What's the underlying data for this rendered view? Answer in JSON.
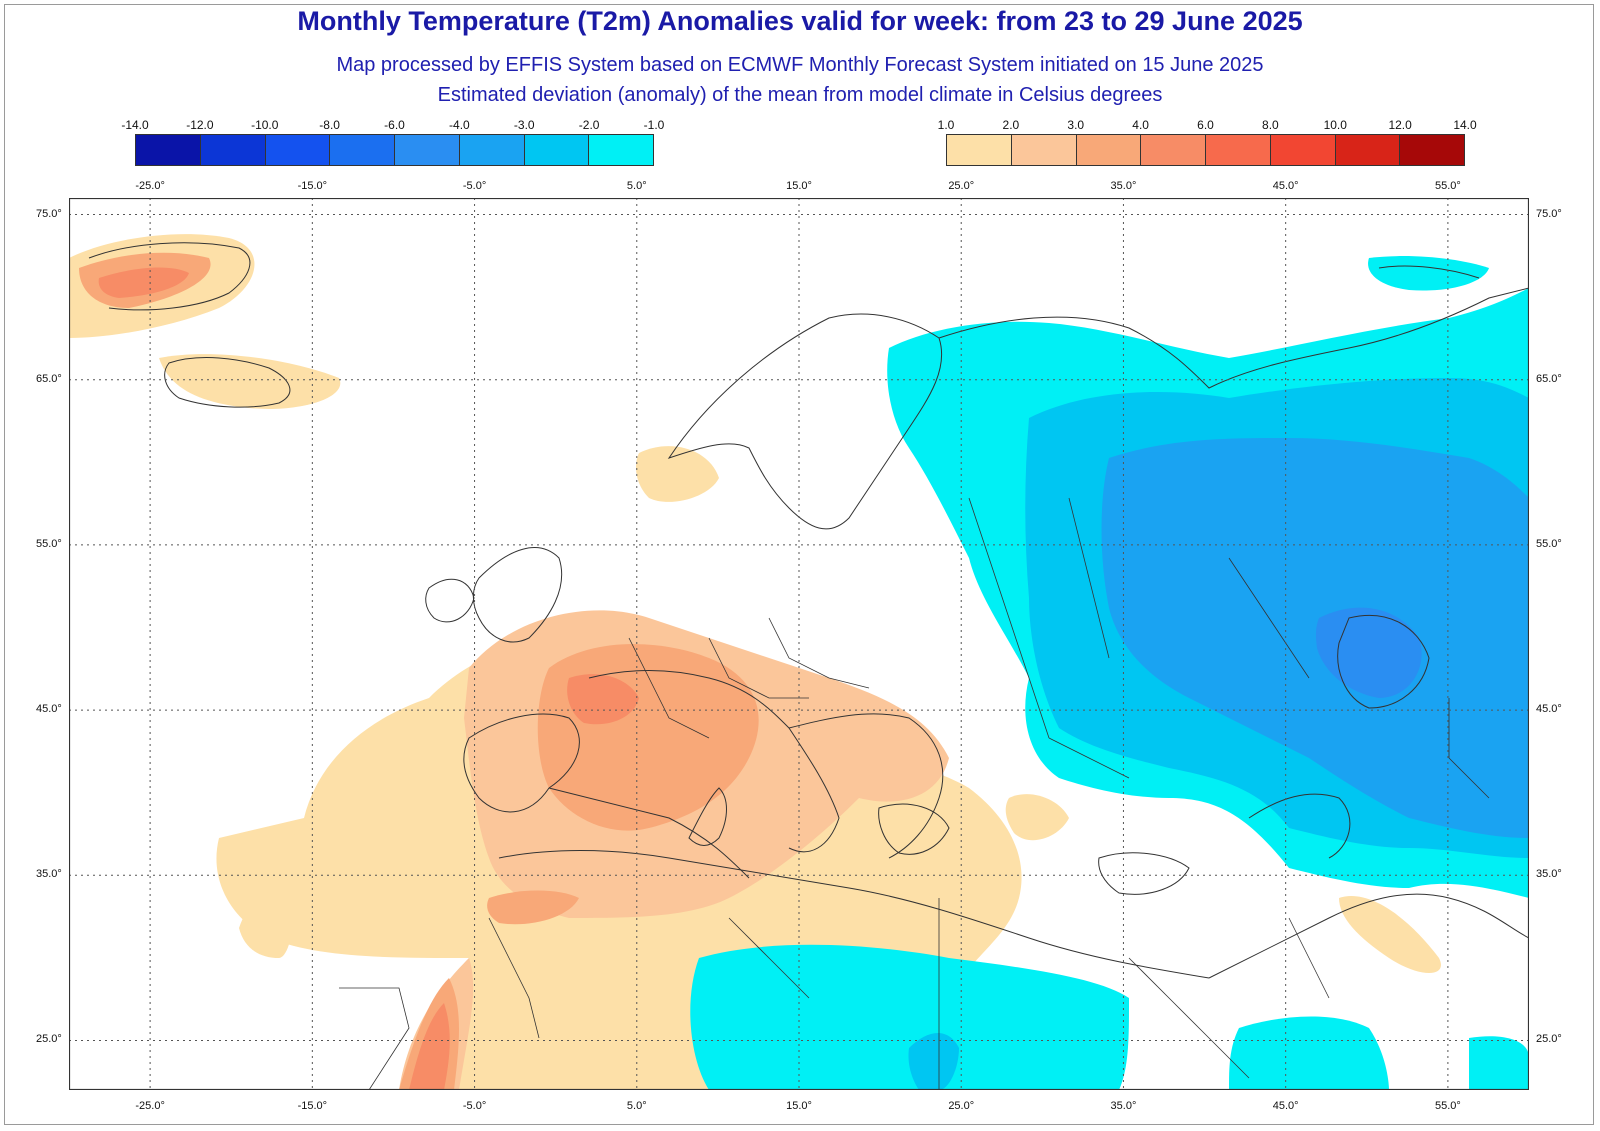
{
  "header": {
    "title": "Monthly Temperature (T2m) Anomalies valid for week: from 23 to 29 June 2025",
    "subtitle1": "Map processed by EFFIS System based on ECMWF Monthly Forecast System initiated on 15 June 2025",
    "subtitle2": "Estimated deviation (anomaly) of the mean from model climate in Celsius degrees"
  },
  "legend_cold": {
    "labels": [
      "-14.0",
      "-12.0",
      "-10.0",
      "-8.0",
      "-6.0",
      "-4.0",
      "-3.0",
      "-2.0",
      "-1.0"
    ],
    "colors": [
      "#0a14a8",
      "#0c36d6",
      "#1452ef",
      "#1b6ff0",
      "#2a8ef2",
      "#1aa3f2",
      "#00c6f2",
      "#00f0f5"
    ]
  },
  "legend_warm": {
    "labels": [
      "1.0",
      "2.0",
      "3.0",
      "4.0",
      "6.0",
      "8.0",
      "10.0",
      "12.0",
      "14.0"
    ],
    "colors": [
      "#fde0a8",
      "#fbc69a",
      "#f8a878",
      "#f78c66",
      "#f76a4c",
      "#f24632",
      "#d82418",
      "#a60808"
    ]
  },
  "axes": {
    "top_lon_labels": [
      "-25.0°",
      "-15.0°",
      "-5.0°",
      "5.0°",
      "15.0°",
      "25.0°",
      "35.0°",
      "45.0°",
      "55.0°"
    ],
    "bottom_lon_labels": [
      "-25.0°",
      "-15.0°",
      "-5.0°",
      "5.0°",
      "15.0°",
      "25.0°",
      "35.0°",
      "45.0°",
      "55.0°"
    ],
    "lat_labels": [
      "75.0°",
      "65.0°",
      "55.0°",
      "45.0°",
      "35.0°",
      "25.0°"
    ]
  },
  "map": {
    "lon_range": [
      -30,
      60
    ],
    "lat_range": [
      22,
      76
    ],
    "gridlines": "dotted",
    "colors": {
      "land_outline": "#333333",
      "warm1": "#fde0a8",
      "warm2": "#fbc69a",
      "warm3": "#f8a878",
      "warm4": "#f78c66",
      "cold1": "#00f0f5",
      "cold2": "#00c6f2",
      "cold3": "#1aa3f2",
      "cold4": "#2a8ef2"
    }
  }
}
